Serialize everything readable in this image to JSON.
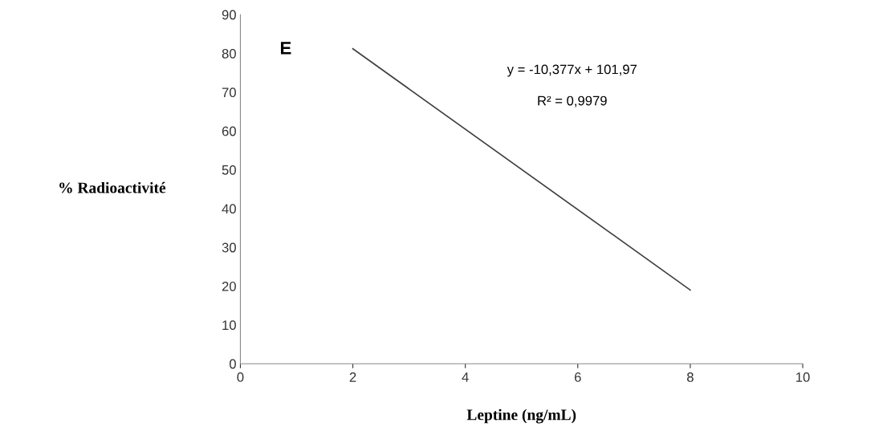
{
  "chart_data": {
    "type": "line",
    "xlabel": "Leptine (ng/mL)",
    "ylabel": "% Radioactivité",
    "x": [
      2,
      8
    ],
    "series": [
      {
        "color": "#404040",
        "values": [
          81.2,
          19.0
        ]
      }
    ],
    "xlim": [
      0,
      10
    ],
    "xticks": [
      0,
      2,
      4,
      6,
      8,
      10
    ],
    "ylim": [
      0,
      90
    ],
    "yticks": [
      0,
      10,
      20,
      30,
      40,
      50,
      60,
      70,
      80,
      90
    ],
    "grid": false,
    "marker": "none",
    "line_style": "solid",
    "annotations": [
      "E",
      "y = -10,377x + 101,97",
      "R² = 0,9979"
    ]
  }
}
